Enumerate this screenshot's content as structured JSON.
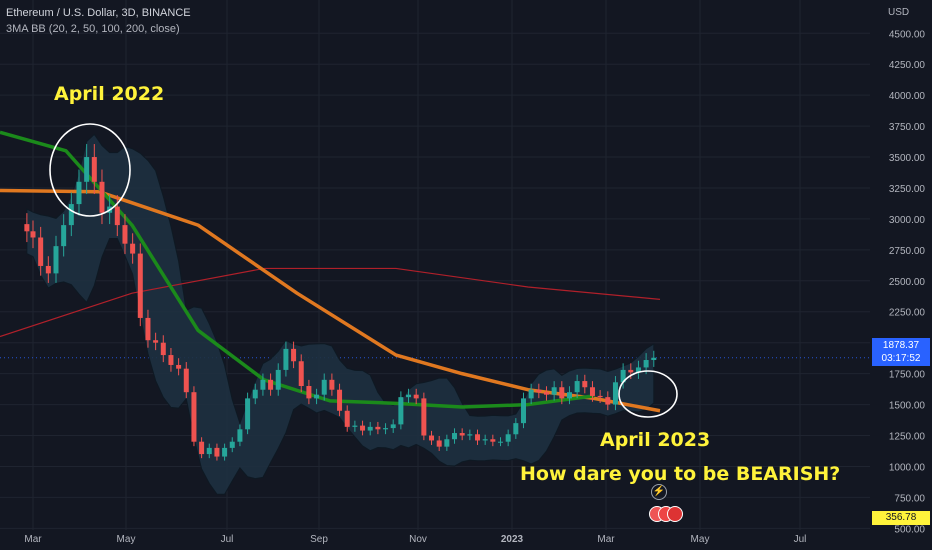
{
  "header": {
    "title": "Ethereum / U.S. Dollar, 3D, BINANCE",
    "indicator": "3MA BB (20, 2, 50, 100, 200, close)"
  },
  "annotations": {
    "april_2022": "April 2022",
    "april_2023": "April 2023",
    "question": "How dare you to be BEARISH?"
  },
  "price_tag": {
    "price": "1878.37",
    "countdown": "03:17:52"
  },
  "lower_tag": "356.78",
  "colors": {
    "background": "#131722",
    "up": "#26a69a",
    "down": "#ef5350",
    "ma_fast": "#1b8a1b",
    "ma_mid": "#e07820",
    "ma_slow": "#b0202a",
    "band_fill": "#1e3040",
    "annotation": "#fff33b",
    "price_tag": "#2962ff",
    "lower_tag": "#fff33b"
  },
  "chart_data": {
    "type": "candlestick",
    "title": "Ethereum / U.S. Dollar, 3D, BINANCE",
    "y_axis": {
      "label": "USD",
      "ticks": [
        "4500.00",
        "4250.00",
        "4000.00",
        "3750.00",
        "3500.00",
        "3250.00",
        "3000.00",
        "2750.00",
        "2500.00",
        "2250.00",
        "2000.00",
        "1750.00",
        "1500.00",
        "1250.00",
        "1000.00",
        "750.00",
        "500.00"
      ],
      "range": [
        430,
        4680
      ]
    },
    "x_axis": {
      "ticks": [
        "Mar",
        "May",
        "Jul",
        "Sep",
        "Nov",
        "2023",
        "Mar",
        "May",
        "Jul"
      ]
    },
    "last_price": 1878.37,
    "grid": true,
    "series_close": [
      [
        "2022-02-25",
        2900
      ],
      [
        "2022-03-01",
        2850
      ],
      [
        "2022-03-06",
        2620
      ],
      [
        "2022-03-11",
        2560
      ],
      [
        "2022-03-16",
        2780
      ],
      [
        "2022-03-21",
        2950
      ],
      [
        "2022-03-26",
        3120
      ],
      [
        "2022-03-31",
        3300
      ],
      [
        "2022-04-05",
        3500
      ],
      [
        "2022-04-10",
        3300
      ],
      [
        "2022-04-15",
        3050
      ],
      [
        "2022-04-20",
        3100
      ],
      [
        "2022-04-25",
        2950
      ],
      [
        "2022-04-30",
        2800
      ],
      [
        "2022-05-05",
        2720
      ],
      [
        "2022-05-10",
        2200
      ],
      [
        "2022-05-15",
        2020
      ],
      [
        "2022-05-20",
        2000
      ],
      [
        "2022-05-25",
        1900
      ],
      [
        "2022-05-30",
        1820
      ],
      [
        "2022-06-04",
        1790
      ],
      [
        "2022-06-09",
        1600
      ],
      [
        "2022-06-14",
        1200
      ],
      [
        "2022-06-19",
        1100
      ],
      [
        "2022-06-24",
        1150
      ],
      [
        "2022-06-29",
        1080
      ],
      [
        "2022-07-04",
        1150
      ],
      [
        "2022-07-09",
        1200
      ],
      [
        "2022-07-14",
        1300
      ],
      [
        "2022-07-19",
        1550
      ],
      [
        "2022-07-24",
        1620
      ],
      [
        "2022-07-29",
        1700
      ],
      [
        "2022-08-03",
        1620
      ],
      [
        "2022-08-08",
        1780
      ],
      [
        "2022-08-13",
        1950
      ],
      [
        "2022-08-18",
        1850
      ],
      [
        "2022-08-23",
        1650
      ],
      [
        "2022-08-28",
        1550
      ],
      [
        "2022-09-02",
        1580
      ],
      [
        "2022-09-07",
        1700
      ],
      [
        "2022-09-12",
        1620
      ],
      [
        "2022-09-17",
        1450
      ],
      [
        "2022-09-22",
        1320
      ],
      [
        "2022-09-27",
        1330
      ],
      [
        "2022-10-02",
        1290
      ],
      [
        "2022-10-07",
        1320
      ],
      [
        "2022-10-12",
        1300
      ],
      [
        "2022-10-17",
        1310
      ],
      [
        "2022-10-22",
        1340
      ],
      [
        "2022-10-27",
        1560
      ],
      [
        "2022-11-01",
        1580
      ],
      [
        "2022-11-06",
        1550
      ],
      [
        "2022-11-11",
        1250
      ],
      [
        "2022-11-16",
        1210
      ],
      [
        "2022-11-21",
        1160
      ],
      [
        "2022-11-26",
        1220
      ],
      [
        "2022-12-01",
        1270
      ],
      [
        "2022-12-06",
        1250
      ],
      [
        "2022-12-11",
        1260
      ],
      [
        "2022-12-16",
        1210
      ],
      [
        "2022-12-21",
        1220
      ],
      [
        "2022-12-26",
        1200
      ],
      [
        "2022-12-31",
        1200
      ],
      [
        "2023-01-05",
        1260
      ],
      [
        "2023-01-10",
        1350
      ],
      [
        "2023-01-15",
        1550
      ],
      [
        "2023-01-20",
        1620
      ],
      [
        "2023-01-25",
        1600
      ],
      [
        "2023-01-30",
        1580
      ],
      [
        "2023-02-04",
        1640
      ],
      [
        "2023-02-09",
        1550
      ],
      [
        "2023-02-14",
        1600
      ],
      [
        "2023-02-19",
        1690
      ],
      [
        "2023-02-24",
        1640
      ],
      [
        "2023-03-01",
        1570
      ],
      [
        "2023-03-06",
        1560
      ],
      [
        "2023-03-11",
        1500
      ],
      [
        "2023-03-16",
        1680
      ],
      [
        "2023-03-21",
        1780
      ],
      [
        "2023-03-26",
        1760
      ],
      [
        "2023-03-31",
        1800
      ],
      [
        "2023-04-05",
        1860
      ],
      [
        "2023-04-10",
        1878.37
      ]
    ],
    "ma_fast_points": [
      [
        0,
        3700
      ],
      [
        0.1,
        3550
      ],
      [
        0.2,
        2950
      ],
      [
        0.3,
        2100
      ],
      [
        0.4,
        1700
      ],
      [
        0.5,
        1530
      ],
      [
        0.6,
        1510
      ],
      [
        0.7,
        1480
      ],
      [
        0.8,
        1500
      ],
      [
        0.9,
        1570
      ]
    ],
    "ma_mid_points": [
      [
        0,
        3230
      ],
      [
        0.15,
        3220
      ],
      [
        0.3,
        2950
      ],
      [
        0.45,
        2400
      ],
      [
        0.6,
        1900
      ],
      [
        0.7,
        1750
      ],
      [
        0.8,
        1620
      ],
      [
        0.9,
        1550
      ],
      [
        1,
        1450
      ]
    ],
    "ma_slow_points": [
      [
        0,
        2050
      ],
      [
        0.2,
        2400
      ],
      [
        0.4,
        2600
      ],
      [
        0.6,
        2600
      ],
      [
        0.8,
        2450
      ],
      [
        1,
        2350
      ]
    ]
  }
}
